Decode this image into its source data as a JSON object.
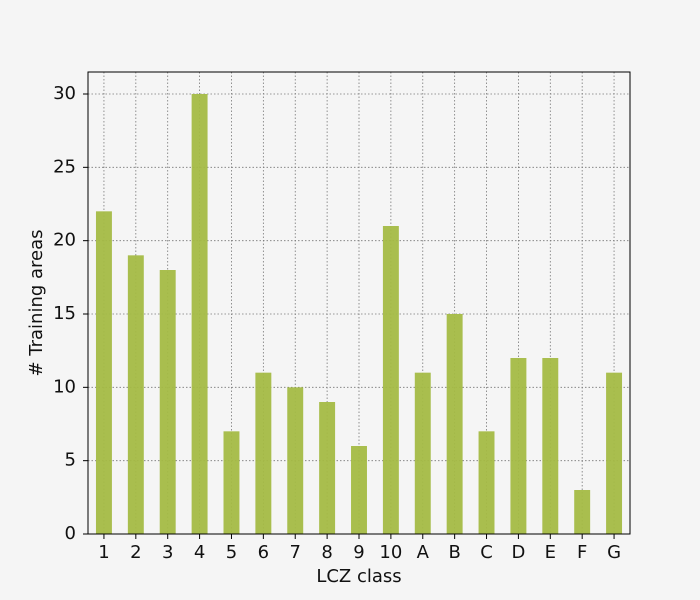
{
  "chart_data": {
    "type": "bar",
    "x_label": "LCZ class",
    "y_label": "# Training areas",
    "categories": [
      "1",
      "2",
      "3",
      "4",
      "5",
      "6",
      "7",
      "8",
      "9",
      "10",
      "A",
      "B",
      "C",
      "D",
      "E",
      "F",
      "G"
    ],
    "values": [
      22,
      19,
      18,
      30,
      7,
      11,
      10,
      9,
      6,
      21,
      11,
      15,
      7,
      12,
      12,
      3,
      11
    ],
    "color": "#a4bb45",
    "ylim": [
      0,
      31.5
    ],
    "yticks": [
      0,
      5,
      10,
      15,
      20,
      25,
      30
    ],
    "grid": true
  }
}
